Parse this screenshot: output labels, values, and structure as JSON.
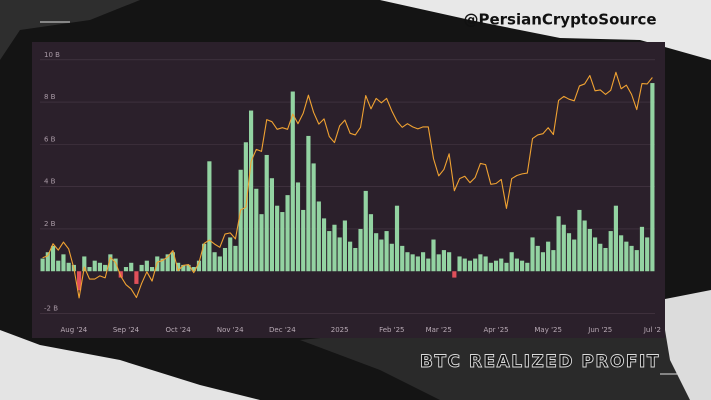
{
  "chart_data": {
    "type": "bar",
    "title": "BTC REALIZED PROFIT",
    "source": "@PersianCryptoSource",
    "categories": [
      null,
      null,
      null,
      null,
      null,
      null,
      "Aug '24",
      null,
      null,
      null,
      null,
      null,
      null,
      null,
      null,
      null,
      "Sep '24",
      null,
      null,
      null,
      null,
      null,
      null,
      null,
      null,
      null,
      "Oct '24",
      null,
      null,
      null,
      null,
      null,
      null,
      null,
      null,
      null,
      "Nov '24",
      null,
      null,
      null,
      null,
      null,
      null,
      null,
      null,
      null,
      "Dec '24",
      null,
      null,
      null,
      null,
      null,
      null,
      null,
      null,
      null,
      null,
      "2025",
      null,
      null,
      null,
      null,
      null,
      null,
      null,
      null,
      null,
      "Feb '25",
      null,
      null,
      null,
      null,
      null,
      null,
      null,
      null,
      "Mar '25",
      null,
      null,
      null,
      null,
      null,
      null,
      null,
      null,
      null,
      null,
      "Apr '25",
      null,
      null,
      null,
      null,
      null,
      null,
      null,
      null,
      null,
      "May '25",
      null,
      null,
      null,
      null,
      null,
      null,
      null,
      null,
      null,
      "Jun '25",
      null,
      null,
      null,
      null,
      null,
      null,
      null,
      null,
      null,
      "Jul '2"
    ],
    "series": [
      {
        "type": "bar",
        "color": "#93d3a2",
        "negative_color": "#e0505a",
        "values": [
          0.6,
          0.9,
          1.2,
          0.5,
          0.8,
          0.4,
          0.3,
          -0.9,
          0.7,
          0.2,
          0.5,
          0.4,
          0.3,
          0.8,
          0.6,
          -0.3,
          0.2,
          0.4,
          -0.6,
          0.3,
          0.5,
          0.2,
          0.7,
          0.6,
          0.8,
          0.9,
          0.4,
          0.3,
          0.3,
          0.2,
          0.5,
          1.3,
          5.2,
          0.9,
          0.7,
          1.1,
          1.6,
          1.2,
          4.8,
          6.1,
          7.6,
          3.9,
          2.7,
          5.5,
          4.4,
          3.1,
          2.8,
          3.6,
          8.5,
          4.2,
          2.9,
          6.4,
          5.1,
          3.3,
          2.5,
          1.9,
          2.2,
          1.6,
          2.4,
          1.4,
          1.1,
          2.0,
          3.8,
          2.7,
          1.8,
          1.5,
          1.9,
          1.3,
          3.1,
          1.2,
          0.9,
          0.8,
          0.7,
          0.9,
          0.6,
          1.5,
          0.8,
          1.0,
          0.9,
          -0.3,
          0.7,
          0.6,
          0.5,
          0.6,
          0.8,
          0.7,
          0.4,
          0.5,
          0.6,
          0.4,
          0.9,
          0.6,
          0.5,
          0.4,
          1.6,
          1.2,
          0.9,
          1.4,
          1.0,
          2.6,
          2.2,
          1.8,
          1.5,
          2.9,
          2.4,
          2.0,
          1.6,
          1.3,
          1.1,
          1.9,
          3.1,
          1.7,
          1.4,
          1.2,
          1.0,
          2.1,
          1.6,
          8.9
        ]
      },
      {
        "type": "line",
        "axis": "y2",
        "color": "#f0a232",
        "values": [
          64000,
          64500,
          67500,
          65900,
          67900,
          66200,
          61400,
          54000,
          61700,
          58700,
          58700,
          59500,
          59000,
          64100,
          62800,
          59400,
          57300,
          56200,
          54100,
          57600,
          60500,
          58200,
          62900,
          63300,
          64200,
          65800,
          60800,
          62100,
          62300,
          60300,
          62800,
          67600,
          68400,
          67400,
          66600,
          69900,
          70200,
          68700,
          75900,
          76600,
          88000,
          91000,
          90500,
          98400,
          97900,
          96000,
          96400,
          96000,
          99800,
          97400,
          100000,
          104500,
          100200,
          97300,
          98600,
          94200,
          92700,
          96900,
          98300,
          95000,
          94600,
          96500,
          104400,
          101100,
          103700,
          102600,
          103700,
          100600,
          98000,
          96500,
          97400,
          96600,
          96100,
          96600,
          96600,
          88700,
          84400,
          86000,
          89900,
          80700,
          83700,
          84300,
          82700,
          84000,
          87500,
          87200,
          82300,
          82500,
          83500,
          76300,
          83700,
          84500,
          84900,
          85100,
          93700,
          94600,
          94900,
          96400,
          94700,
          103200,
          104200,
          103500,
          103100,
          106800,
          107300,
          109400,
          105600,
          105800,
          104700,
          105700,
          110200,
          106100,
          107000,
          104700,
          100900,
          107400,
          107300,
          108900
        ]
      }
    ],
    "ylim": [
      -2.4,
      10.7
    ],
    "yticks": [
      {
        "value": -2,
        "label": "-2 B"
      },
      {
        "value": 2,
        "label": "2 B"
      },
      {
        "value": 4,
        "label": "4 B"
      },
      {
        "value": 6,
        "label": "6 B"
      },
      {
        "value": 8,
        "label": "8 B"
      },
      {
        "value": 10,
        "label": "10 B"
      }
    ],
    "y2lim": [
      48000,
      117000
    ],
    "grid": true
  }
}
